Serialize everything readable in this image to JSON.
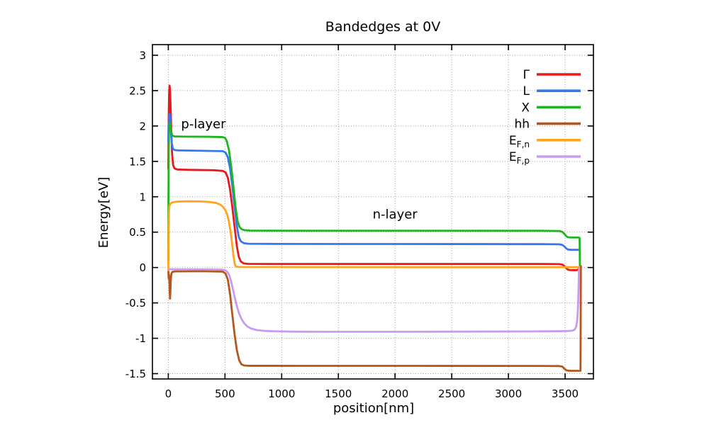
{
  "chart_data": {
    "type": "line",
    "title": "Bandedges at 0V",
    "xlabel": "position[nm]",
    "ylabel": "Energy[eV]",
    "xlim": [
      -140,
      3750
    ],
    "ylim": [
      -1.575,
      3.15
    ],
    "grid": true,
    "legend_position": "inside top-right",
    "background_color": "#ffffff",
    "axis_color": "#000000",
    "grid_color": "#9a9a9a",
    "xticks": [
      {
        "v": 0,
        "label": "0"
      },
      {
        "v": 500,
        "label": "500"
      },
      {
        "v": 1000,
        "label": "1000"
      },
      {
        "v": 1500,
        "label": "1500"
      },
      {
        "v": 2000,
        "label": "2000"
      },
      {
        "v": 2500,
        "label": "2500"
      },
      {
        "v": 3000,
        "label": "3000"
      },
      {
        "v": 3500,
        "label": "3500"
      }
    ],
    "yticks": [
      {
        "v": 3,
        "label": "3"
      },
      {
        "v": 2.5,
        "label": "2.5"
      },
      {
        "v": 2,
        "label": "2"
      },
      {
        "v": 1.5,
        "label": "1.5"
      },
      {
        "v": 1,
        "label": "1"
      },
      {
        "v": 0.5,
        "label": "0.5"
      },
      {
        "v": 0,
        "label": "0"
      },
      {
        "v": -0.5,
        "label": "-0.5"
      },
      {
        "v": -1,
        "label": "-1"
      },
      {
        "v": -1.5,
        "label": "-1.5"
      }
    ],
    "annotations": [
      {
        "id": "p-layer",
        "text": "p-layer",
        "x": 310,
        "y": 2.03
      },
      {
        "id": "n-layer",
        "text": "n-layer",
        "x": 2000,
        "y": 0.75
      }
    ],
    "series": [
      {
        "id": "gamma",
        "label": "Γ",
        "sub": "",
        "color": "#e41a1c",
        "points": [
          [
            0,
            1.4
          ],
          [
            3,
            2.1
          ],
          [
            7,
            2.45
          ],
          [
            11,
            2.57
          ],
          [
            15,
            2.52
          ],
          [
            20,
            2.28
          ],
          [
            26,
            1.95
          ],
          [
            33,
            1.62
          ],
          [
            42,
            1.45
          ],
          [
            55,
            1.4
          ],
          [
            80,
            1.385
          ],
          [
            200,
            1.38
          ],
          [
            400,
            1.375
          ],
          [
            480,
            1.365
          ],
          [
            505,
            1.345
          ],
          [
            525,
            1.27
          ],
          [
            545,
            1.1
          ],
          [
            565,
            0.85
          ],
          [
            585,
            0.57
          ],
          [
            605,
            0.3
          ],
          [
            622,
            0.15
          ],
          [
            640,
            0.085
          ],
          [
            665,
            0.058
          ],
          [
            700,
            0.052
          ],
          [
            900,
            0.05
          ],
          [
            1500,
            0.05
          ],
          [
            2500,
            0.05
          ],
          [
            3300,
            0.05
          ],
          [
            3450,
            0.048
          ],
          [
            3475,
            0.042
          ],
          [
            3495,
            0.02
          ],
          [
            3510,
            -0.01
          ],
          [
            3525,
            -0.03
          ],
          [
            3545,
            -0.037
          ],
          [
            3590,
            -0.038
          ],
          [
            3608,
            -0.035
          ],
          [
            3618,
            -0.025
          ],
          [
            3622,
            -0.02
          ]
        ]
      },
      {
        "id": "L",
        "label": "L",
        "sub": "",
        "color": "#3478f0",
        "points": [
          [
            0,
            1.78
          ],
          [
            3,
            2.02
          ],
          [
            7,
            2.13
          ],
          [
            11,
            2.17
          ],
          [
            16,
            2.12
          ],
          [
            22,
            1.95
          ],
          [
            30,
            1.76
          ],
          [
            40,
            1.68
          ],
          [
            55,
            1.66
          ],
          [
            90,
            1.655
          ],
          [
            300,
            1.65
          ],
          [
            480,
            1.645
          ],
          [
            505,
            1.625
          ],
          [
            525,
            1.56
          ],
          [
            545,
            1.4
          ],
          [
            565,
            1.15
          ],
          [
            585,
            0.85
          ],
          [
            605,
            0.58
          ],
          [
            622,
            0.43
          ],
          [
            640,
            0.37
          ],
          [
            665,
            0.345
          ],
          [
            705,
            0.336
          ],
          [
            1000,
            0.333
          ],
          [
            2000,
            0.332
          ],
          [
            3300,
            0.33
          ],
          [
            3450,
            0.328
          ],
          [
            3475,
            0.32
          ],
          [
            3495,
            0.295
          ],
          [
            3510,
            0.27
          ],
          [
            3525,
            0.255
          ],
          [
            3545,
            0.25
          ],
          [
            3628,
            0.25
          ]
        ]
      },
      {
        "id": "X",
        "label": "X",
        "sub": "",
        "color": "#20b520",
        "points": [
          [
            0,
            0.1
          ],
          [
            1,
            0.8
          ],
          [
            3,
            1.55
          ],
          [
            6,
            1.9
          ],
          [
            10,
            2.02
          ],
          [
            15,
            2.04
          ],
          [
            21,
            1.98
          ],
          [
            28,
            1.9
          ],
          [
            38,
            1.862
          ],
          [
            55,
            1.853
          ],
          [
            150,
            1.85
          ],
          [
            350,
            1.848
          ],
          [
            480,
            1.843
          ],
          [
            500,
            1.832
          ],
          [
            515,
            1.79
          ],
          [
            535,
            1.66
          ],
          [
            555,
            1.43
          ],
          [
            575,
            1.13
          ],
          [
            595,
            0.83
          ],
          [
            612,
            0.65
          ],
          [
            628,
            0.573
          ],
          [
            645,
            0.543
          ],
          [
            670,
            0.528
          ],
          [
            720,
            0.522
          ],
          [
            1200,
            0.52
          ],
          [
            2200,
            0.52
          ],
          [
            3300,
            0.519
          ],
          [
            3450,
            0.516
          ],
          [
            3475,
            0.505
          ],
          [
            3495,
            0.472
          ],
          [
            3510,
            0.443
          ],
          [
            3525,
            0.428
          ],
          [
            3545,
            0.425
          ],
          [
            3620,
            0.424
          ],
          [
            3628,
            0.418
          ],
          [
            3629,
            0.3
          ],
          [
            3630,
            0.1
          ],
          [
            3631,
            0.02
          ]
        ]
      },
      {
        "id": "hh",
        "label": "hh",
        "sub": "",
        "color": "#b4561e",
        "points": [
          [
            0,
            -0.02
          ],
          [
            2,
            -0.12
          ],
          [
            4,
            -0.16
          ],
          [
            6,
            -0.1
          ],
          [
            9,
            -0.16
          ],
          [
            12,
            -0.32
          ],
          [
            15,
            -0.44
          ],
          [
            18,
            -0.36
          ],
          [
            22,
            -0.18
          ],
          [
            27,
            -0.09
          ],
          [
            35,
            -0.062
          ],
          [
            60,
            -0.055
          ],
          [
            300,
            -0.052
          ],
          [
            480,
            -0.058
          ],
          [
            505,
            -0.085
          ],
          [
            525,
            -0.17
          ],
          [
            545,
            -0.38
          ],
          [
            565,
            -0.67
          ],
          [
            585,
            -0.95
          ],
          [
            605,
            -1.17
          ],
          [
            625,
            -1.31
          ],
          [
            645,
            -1.368
          ],
          [
            670,
            -1.385
          ],
          [
            720,
            -1.389
          ],
          [
            1200,
            -1.39
          ],
          [
            2200,
            -1.39
          ],
          [
            3300,
            -1.391
          ],
          [
            3450,
            -1.393
          ],
          [
            3475,
            -1.4
          ],
          [
            3495,
            -1.432
          ],
          [
            3510,
            -1.452
          ],
          [
            3530,
            -1.458
          ],
          [
            3560,
            -1.46
          ],
          [
            3625,
            -1.46
          ],
          [
            3636,
            -1.458
          ],
          [
            3637,
            -1.1
          ],
          [
            3638,
            -0.5
          ],
          [
            3639,
            0.02
          ]
        ]
      },
      {
        "id": "EFn",
        "label": "E",
        "sub": "F,n",
        "color": "#ffa41c",
        "points": [
          [
            0,
            -0.04
          ],
          [
            1,
            0.25
          ],
          [
            3,
            0.6
          ],
          [
            6,
            0.8
          ],
          [
            10,
            0.868
          ],
          [
            16,
            0.895
          ],
          [
            25,
            0.912
          ],
          [
            45,
            0.925
          ],
          [
            90,
            0.932
          ],
          [
            180,
            0.936
          ],
          [
            280,
            0.934
          ],
          [
            360,
            0.927
          ],
          [
            420,
            0.913
          ],
          [
            455,
            0.892
          ],
          [
            480,
            0.862
          ],
          [
            500,
            0.82
          ],
          [
            518,
            0.755
          ],
          [
            534,
            0.655
          ],
          [
            548,
            0.52
          ],
          [
            560,
            0.37
          ],
          [
            570,
            0.235
          ],
          [
            578,
            0.13
          ],
          [
            585,
            0.06
          ],
          [
            592,
            0.025
          ],
          [
            600,
            0.012
          ],
          [
            620,
            0.008
          ],
          [
            700,
            0.007
          ],
          [
            1200,
            0.006
          ],
          [
            2200,
            0.005
          ],
          [
            3300,
            0.005
          ],
          [
            3550,
            0.005
          ],
          [
            3624,
            0.005
          ]
        ]
      },
      {
        "id": "EFp",
        "label": "E",
        "sub": "F,p",
        "color": "#c89bf2",
        "points": [
          [
            0,
            -0.025
          ],
          [
            150,
            -0.026
          ],
          [
            350,
            -0.027
          ],
          [
            470,
            -0.03
          ],
          [
            500,
            -0.038
          ],
          [
            520,
            -0.06
          ],
          [
            538,
            -0.11
          ],
          [
            555,
            -0.2
          ],
          [
            572,
            -0.32
          ],
          [
            590,
            -0.45
          ],
          [
            608,
            -0.565
          ],
          [
            626,
            -0.655
          ],
          [
            645,
            -0.725
          ],
          [
            668,
            -0.785
          ],
          [
            695,
            -0.83
          ],
          [
            730,
            -0.862
          ],
          [
            780,
            -0.884
          ],
          [
            850,
            -0.896
          ],
          [
            950,
            -0.902
          ],
          [
            1100,
            -0.906
          ],
          [
            1400,
            -0.908
          ],
          [
            2000,
            -0.908
          ],
          [
            2600,
            -0.906
          ],
          [
            3200,
            -0.903
          ],
          [
            3400,
            -0.901
          ],
          [
            3520,
            -0.898
          ],
          [
            3560,
            -0.894
          ],
          [
            3583,
            -0.88
          ],
          [
            3597,
            -0.84
          ],
          [
            3606,
            -0.76
          ],
          [
            3612,
            -0.62
          ],
          [
            3616,
            -0.45
          ],
          [
            3619,
            -0.28
          ],
          [
            3621,
            -0.14
          ],
          [
            3622,
            -0.06
          ],
          [
            3623,
            -0.02
          ]
        ]
      }
    ]
  }
}
